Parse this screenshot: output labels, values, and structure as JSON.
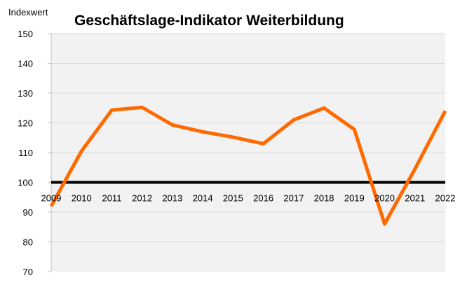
{
  "chart_data": {
    "type": "line",
    "title": "Geschäftslage-Indikator Weiterbildung",
    "ylabel": "Indexwert",
    "xlabel": "",
    "ylim": [
      70,
      150
    ],
    "yticks": [
      70,
      80,
      90,
      100,
      110,
      120,
      130,
      140,
      150
    ],
    "x": [
      "2009",
      "2010",
      "2011",
      "2012",
      "2013",
      "2014",
      "2015",
      "2016",
      "2017",
      "2018",
      "2019",
      "2020",
      "2021",
      "2022"
    ],
    "series": [
      {
        "values": [
          92,
          110.5,
          124.3,
          125.2,
          119.3,
          117,
          115.2,
          113,
          121,
          125,
          117.8,
          86,
          104.5,
          124
        ]
      }
    ],
    "reference_line": 100,
    "grid": true,
    "legend": "none",
    "colors": {
      "line": "#FF6A00",
      "plot_bg": "#F2F2F2",
      "gridline": "#D9D9D9",
      "reference_line": "#000000",
      "axis": "#BFBFBF"
    }
  }
}
